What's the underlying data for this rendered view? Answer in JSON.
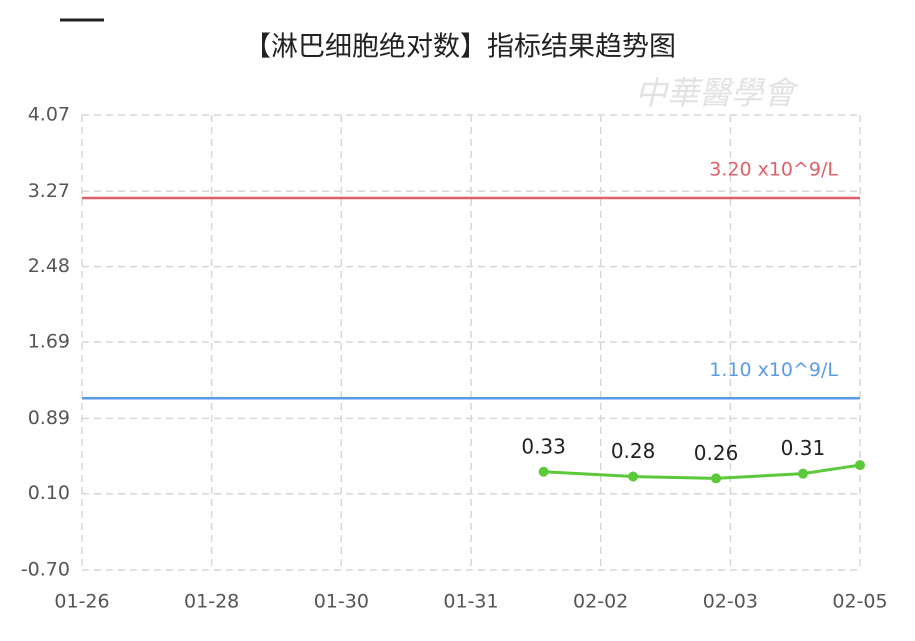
{
  "chart_data": {
    "type": "line",
    "title": "【淋巴细胞绝对数】指标结果趋势图",
    "watermark": "中華醫學會",
    "x": [
      3.56,
      4.25,
      4.89,
      5.56,
      6
    ],
    "xlim": [
      0,
      6
    ],
    "xticks": [
      {
        "value": 0,
        "label": "01-26"
      },
      {
        "value": 1,
        "label": "01-28"
      },
      {
        "value": 2,
        "label": "01-30"
      },
      {
        "value": 3,
        "label": "01-31"
      },
      {
        "value": 4,
        "label": "02-02"
      },
      {
        "value": 5,
        "label": "02-03"
      },
      {
        "value": 6,
        "label": "02-05"
      }
    ],
    "series": [
      {
        "name": "淋巴细胞绝对数",
        "color": "#5cc93a",
        "values": [
          0.33,
          0.28,
          0.26,
          0.31,
          0.4
        ]
      }
    ],
    "ylim": [
      -0.7,
      4.07
    ],
    "yticks": [
      {
        "value": 4.07,
        "label": "4.07"
      },
      {
        "value": 3.27,
        "label": "3.27"
      },
      {
        "value": 2.48,
        "label": "2.48"
      },
      {
        "value": 1.69,
        "label": "1.69"
      },
      {
        "value": 0.89,
        "label": "0.89"
      },
      {
        "value": 0.1,
        "label": "0.10"
      },
      {
        "value": -0.7,
        "label": "-0.70"
      }
    ],
    "reference_lines": [
      {
        "value": 3.2,
        "label": "3.20 x10^9/L",
        "color": "#e0606a"
      },
      {
        "value": 1.1,
        "label": "1.10 x10^9/L",
        "color": "#5a9be6"
      }
    ],
    "grid": true
  }
}
